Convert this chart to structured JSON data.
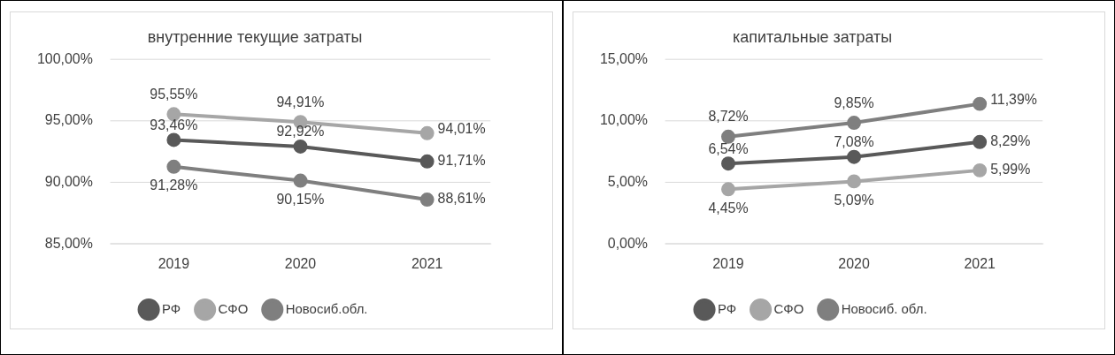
{
  "chart_data": [
    {
      "type": "line",
      "title": "внутренние текущие затраты",
      "categories": [
        "2019",
        "2020",
        "2021"
      ],
      "series": [
        {
          "name": "РФ",
          "color": "#595959",
          "values": [
            93.46,
            92.92,
            91.71
          ],
          "value_labels": [
            "93,46%",
            "92,92%",
            "91,71%"
          ]
        },
        {
          "name": "СФО",
          "color": "#a6a6a6",
          "values": [
            95.55,
            94.91,
            94.01
          ],
          "value_labels": [
            "95,55%",
            "94,91%",
            "94,01%"
          ]
        },
        {
          "name": "Новосиб.обл.",
          "color": "#7f7f7f",
          "values": [
            91.28,
            90.15,
            88.61
          ],
          "value_labels": [
            "91,28%",
            "90,15%",
            "88,61%"
          ]
        }
      ],
      "ylim": [
        85,
        100
      ],
      "yticks": [
        {
          "value": 85,
          "label": "85,00%"
        },
        {
          "value": 90,
          "label": "90,00%"
        },
        {
          "value": 95,
          "label": "95,00%"
        },
        {
          "value": 100,
          "label": "100,00%"
        }
      ],
      "grid": "y",
      "legend": "bottom",
      "marker": "circle",
      "line_style": "solid"
    },
    {
      "type": "line",
      "title": "капитальные затраты",
      "categories": [
        "2019",
        "2020",
        "2021"
      ],
      "series": [
        {
          "name": "РФ",
          "color": "#595959",
          "values": [
            6.54,
            7.08,
            8.29
          ],
          "value_labels": [
            "6,54%",
            "7,08%",
            "8,29%"
          ]
        },
        {
          "name": "СФО",
          "color": "#a6a6a6",
          "values": [
            4.45,
            5.09,
            5.99
          ],
          "value_labels": [
            "4,45%",
            "5,09%",
            "5,99%"
          ]
        },
        {
          "name": "Новосиб. обл.",
          "color": "#7f7f7f",
          "values": [
            8.72,
            9.85,
            11.39
          ],
          "value_labels": [
            "8,72%",
            "9,85%",
            "11,39%"
          ]
        }
      ],
      "ylim": [
        0,
        15
      ],
      "yticks": [
        {
          "value": 0,
          "label": "0,00%"
        },
        {
          "value": 5,
          "label": "5,00%"
        },
        {
          "value": 10,
          "label": "10,00%"
        },
        {
          "value": 15,
          "label": "15,00%"
        }
      ],
      "grid": "y",
      "legend": "bottom",
      "marker": "circle",
      "line_style": "solid"
    }
  ]
}
